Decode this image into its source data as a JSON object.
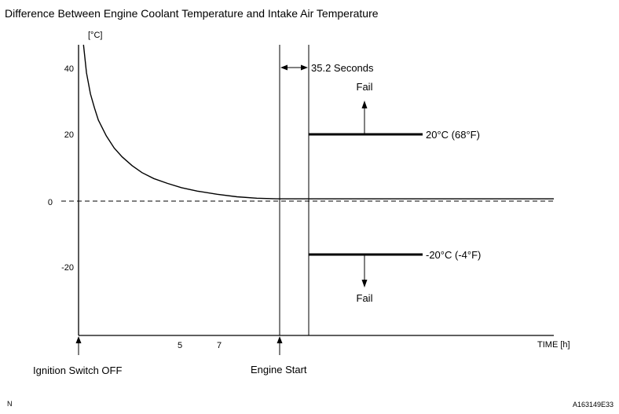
{
  "chart_data": {
    "type": "line",
    "title": "Difference Between Engine Coolant Temperature and Intake Air Temperature",
    "ylabel": "[°C]",
    "xlabel": "TIME [h]",
    "ylim": [
      -37,
      46
    ],
    "y_ticks": [
      "40",
      "20",
      "0",
      "-20"
    ],
    "x_ticks": [
      "5",
      "7"
    ],
    "grid": false,
    "series": [
      {
        "x": [
          0.25,
          0.4,
          0.6,
          0.8,
          1.0,
          1.4,
          1.8,
          2.2,
          2.7,
          3.2,
          3.8,
          4.5,
          5.2,
          6.0,
          7.0,
          8.0,
          9.0,
          10.0,
          11.0,
          12.0,
          13.0,
          14.0,
          15.0,
          16.0,
          17.0,
          18.0,
          19.0,
          20.0,
          21.0,
          22.0,
          23.0,
          24.0
        ],
        "values": [
          46,
          38,
          32,
          28,
          24.5,
          20,
          16.5,
          14,
          11.5,
          9.5,
          7.8,
          6.4,
          5.2,
          4.2,
          3.3,
          2.6,
          2.2,
          2.0,
          2.0,
          2.0,
          2.0,
          2.0,
          2.0,
          2.0,
          2.0,
          2.0,
          2.0,
          2.0,
          2.0,
          2.0,
          2.0,
          2.0
        ]
      }
    ],
    "thresholds": [
      {
        "value": 20,
        "label": "20°C (68°F)",
        "fail_label": "Fail"
      },
      {
        "value": -20,
        "label": "-20°C (-4°F)",
        "fail_label": "Fail"
      }
    ],
    "annotations": {
      "interval": "35.2 Seconds",
      "ignition": "Ignition Switch OFF",
      "engine_start": "Engine Start"
    }
  },
  "footer": {
    "left": "N",
    "right": "A163149E33"
  }
}
